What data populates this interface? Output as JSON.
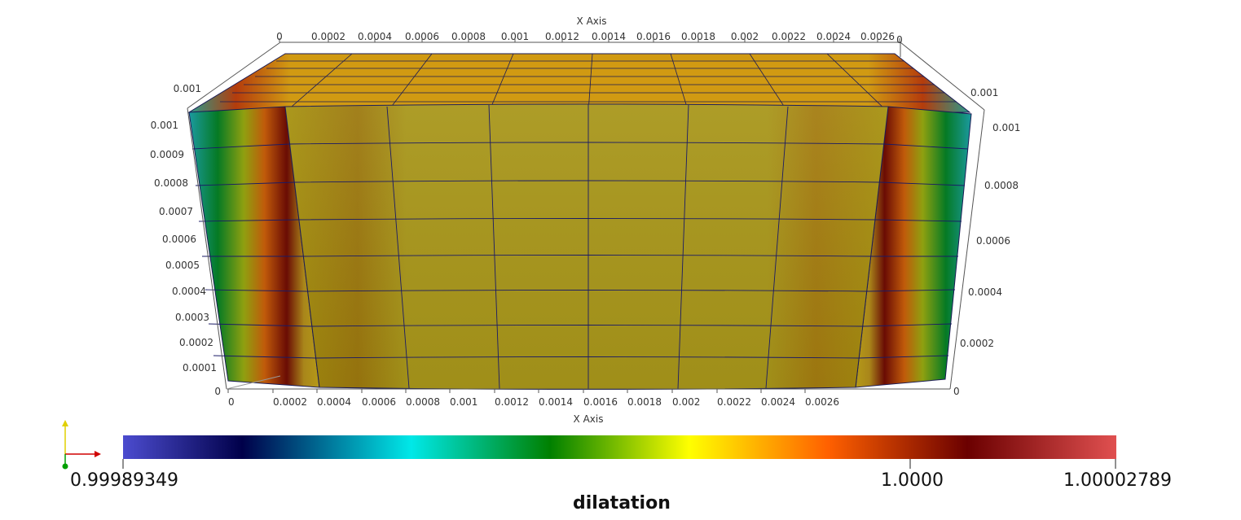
{
  "axes": {
    "top_title": "X Axis",
    "bottom_title": "X Axis",
    "top_ticks": [
      "0",
      "0.0002",
      "0.0004",
      "0.0006",
      "0.0008",
      "0.001",
      "0.0012",
      "0.0014",
      "0.0016",
      "0.0018",
      "0.002",
      "0.0022",
      "0.0024",
      "0.0026",
      "0"
    ],
    "bottom_ticks": [
      "0",
      "0.0002",
      "0.0004",
      "0.0006",
      "0.0008",
      "0.001",
      "0.0012",
      "0.0014",
      "0.0016",
      "0.0018",
      "0.002",
      "0.0022",
      "0.0024",
      "0.0026"
    ],
    "left_ticks": [
      "0.001",
      "0.001",
      "0.0009",
      "0.0008",
      "0.0007",
      "0.0006",
      "0.0005",
      "0.0004",
      "0.0003",
      "0.0002",
      "0.0001",
      "0"
    ],
    "right_ticks": [
      "0.001",
      "0.001",
      "0.0008",
      "0.0006",
      "0.0004",
      "0.0002",
      "0"
    ]
  },
  "colorbar": {
    "title": "dilatation",
    "min_label": "0.99989349",
    "mid_label": "1.0000",
    "max_label": "1.00002789",
    "range": [
      0.99989349,
      1.00002789
    ],
    "stops": [
      "#4c4ccf",
      "#00004a",
      "#00e0e0",
      "#008000",
      "#ffff00",
      "#ff6000",
      "#6b0000",
      "#e05050"
    ]
  },
  "mesh": {
    "top_color": "#c9a414",
    "front_color": "#a89414",
    "edge_color": "#1a1a55",
    "side_colors": [
      "#1a8a8a",
      "#0a7a2a",
      "#a08010",
      "#8b1a00",
      "#5a0808"
    ]
  }
}
